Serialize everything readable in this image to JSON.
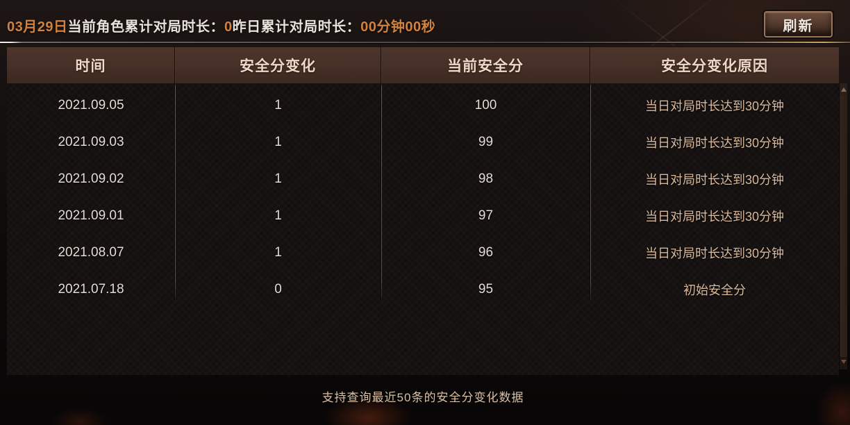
{
  "topbar": {
    "date": "03月29日",
    "today_label": "当前角色累计对局时长：",
    "today_value": "0",
    "yesterday_label": "昨日累计对局时长：",
    "yesterday_value": "00分钟00秒",
    "refresh_label": "刷新"
  },
  "table": {
    "columns": [
      "时间",
      "安全分变化",
      "当前安全分",
      "安全分变化原因"
    ],
    "rows": [
      {
        "date": "2021.09.05",
        "change": "1",
        "score": "100",
        "reason": "当日对局时长达到30分钟"
      },
      {
        "date": "2021.09.03",
        "change": "1",
        "score": "99",
        "reason": "当日对局时长达到30分钟"
      },
      {
        "date": "2021.09.02",
        "change": "1",
        "score": "98",
        "reason": "当日对局时长达到30分钟"
      },
      {
        "date": "2021.09.01",
        "change": "1",
        "score": "97",
        "reason": "当日对局时长达到30分钟"
      },
      {
        "date": "2021.08.07",
        "change": "1",
        "score": "96",
        "reason": "当日对局时长达到30分钟"
      },
      {
        "date": "2021.07.18",
        "change": "0",
        "score": "95",
        "reason": "初始安全分"
      }
    ]
  },
  "footer": {
    "note": "支持查询最近50条的安全分变化数据"
  },
  "icons": {
    "scroll_up": "up-triangle",
    "scroll_down": "down-triangle"
  },
  "colors": {
    "accent_orange": "#d2823f",
    "label_white": "#e9e2da",
    "header_bg": "#452f26",
    "header_text": "#eed8c6",
    "row_text": "#e4dcd3",
    "reason_text": "#d9b89b",
    "footer_text": "#d9c0a5",
    "button_border": "#95735c"
  }
}
